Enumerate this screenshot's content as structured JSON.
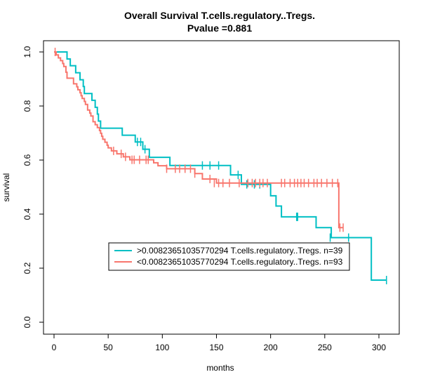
{
  "chart_data": {
    "type": "line",
    "title": "Overall Survival T.cells.regulatory..Tregs.",
    "subtitle": "Pvalue =0.881",
    "xlabel": "months",
    "ylabel": "survival",
    "xlim": [
      0,
      310
    ],
    "ylim": [
      0,
      1
    ],
    "x_ticks": [
      "0",
      "50",
      "100",
      "150",
      "200",
      "250",
      "300"
    ],
    "y_ticks": [
      "0.0",
      "0.2",
      "0.4",
      "0.6",
      "0.8",
      "1.0"
    ],
    "grid": false,
    "legend_position": "bottom-center",
    "series": [
      {
        "name": ">0.00823651035770294 T.cells.regulatory..Tregs. n=39",
        "color": "#00BFC4",
        "steps": [
          [
            0,
            1.0
          ],
          [
            12,
            0.974
          ],
          [
            15,
            0.949
          ],
          [
            20,
            0.923
          ],
          [
            24,
            0.897
          ],
          [
            27,
            0.872
          ],
          [
            28,
            0.846
          ],
          [
            35,
            0.821
          ],
          [
            38,
            0.795
          ],
          [
            40,
            0.77
          ],
          [
            41,
            0.744
          ],
          [
            43,
            0.718
          ],
          [
            63,
            0.692
          ],
          [
            75,
            0.667
          ],
          [
            82,
            0.64
          ],
          [
            88,
            0.61
          ],
          [
            107,
            0.58
          ],
          [
            163,
            0.545
          ],
          [
            173,
            0.51
          ],
          [
            200,
            0.468
          ],
          [
            205,
            0.43
          ],
          [
            210,
            0.39
          ],
          [
            242,
            0.35
          ],
          [
            256,
            0.313
          ],
          [
            293,
            0.156
          ]
        ],
        "end_x": 307,
        "censored": [
          [
            77,
            0.667
          ],
          [
            80,
            0.667
          ],
          [
            84,
            0.64
          ],
          [
            137,
            0.58
          ],
          [
            144,
            0.58
          ],
          [
            152,
            0.58
          ],
          [
            170,
            0.545
          ],
          [
            178,
            0.51
          ],
          [
            185,
            0.51
          ],
          [
            190,
            0.51
          ],
          [
            224,
            0.39
          ],
          [
            225,
            0.39
          ],
          [
            255,
            0.313
          ],
          [
            272,
            0.313
          ],
          [
            307,
            0.156
          ]
        ]
      },
      {
        "name": "<0.00823651035770294 T.cells.regulatory..Tregs. n=93",
        "color": "#F8766D",
        "steps": [
          [
            0,
            1.0
          ],
          [
            2,
            0.989
          ],
          [
            4,
            0.978
          ],
          [
            6,
            0.968
          ],
          [
            8,
            0.957
          ],
          [
            9,
            0.946
          ],
          [
            11,
            0.925
          ],
          [
            12,
            0.903
          ],
          [
            18,
            0.882
          ],
          [
            21,
            0.871
          ],
          [
            22,
            0.86
          ],
          [
            24,
            0.849
          ],
          [
            25,
            0.838
          ],
          [
            26,
            0.828
          ],
          [
            28,
            0.817
          ],
          [
            29,
            0.806
          ],
          [
            31,
            0.785
          ],
          [
            33,
            0.774
          ],
          [
            34,
            0.763
          ],
          [
            36,
            0.742
          ],
          [
            38,
            0.731
          ],
          [
            40,
            0.72
          ],
          [
            42,
            0.709
          ],
          [
            43,
            0.699
          ],
          [
            44,
            0.688
          ],
          [
            45,
            0.677
          ],
          [
            47,
            0.666
          ],
          [
            49,
            0.655
          ],
          [
            50,
            0.645
          ],
          [
            53,
            0.634
          ],
          [
            58,
            0.623
          ],
          [
            64,
            0.612
          ],
          [
            70,
            0.601
          ],
          [
            92,
            0.59
          ],
          [
            96,
            0.579
          ],
          [
            104,
            0.568
          ],
          [
            130,
            0.55
          ],
          [
            137,
            0.53
          ],
          [
            150,
            0.515
          ],
          [
            263,
            0.35
          ]
        ],
        "end_x": 267,
        "censored": [
          [
            1,
            1.0
          ],
          [
            55,
            0.634
          ],
          [
            62,
            0.623
          ],
          [
            66,
            0.612
          ],
          [
            72,
            0.601
          ],
          [
            74,
            0.601
          ],
          [
            79,
            0.601
          ],
          [
            85,
            0.601
          ],
          [
            87,
            0.601
          ],
          [
            104,
            0.568
          ],
          [
            112,
            0.568
          ],
          [
            116,
            0.568
          ],
          [
            121,
            0.568
          ],
          [
            126,
            0.568
          ],
          [
            130,
            0.55
          ],
          [
            144,
            0.53
          ],
          [
            148,
            0.515
          ],
          [
            152,
            0.515
          ],
          [
            156,
            0.515
          ],
          [
            162,
            0.515
          ],
          [
            171,
            0.515
          ],
          [
            179,
            0.515
          ],
          [
            183,
            0.515
          ],
          [
            186,
            0.515
          ],
          [
            190,
            0.515
          ],
          [
            193,
            0.515
          ],
          [
            197,
            0.515
          ],
          [
            210,
            0.515
          ],
          [
            213,
            0.515
          ],
          [
            218,
            0.515
          ],
          [
            222,
            0.515
          ],
          [
            225,
            0.515
          ],
          [
            228,
            0.515
          ],
          [
            231,
            0.515
          ],
          [
            235,
            0.515
          ],
          [
            240,
            0.515
          ],
          [
            243,
            0.515
          ],
          [
            247,
            0.515
          ],
          [
            252,
            0.515
          ],
          [
            257,
            0.515
          ],
          [
            262,
            0.515
          ],
          [
            264,
            0.35
          ],
          [
            267,
            0.35
          ]
        ]
      }
    ]
  }
}
